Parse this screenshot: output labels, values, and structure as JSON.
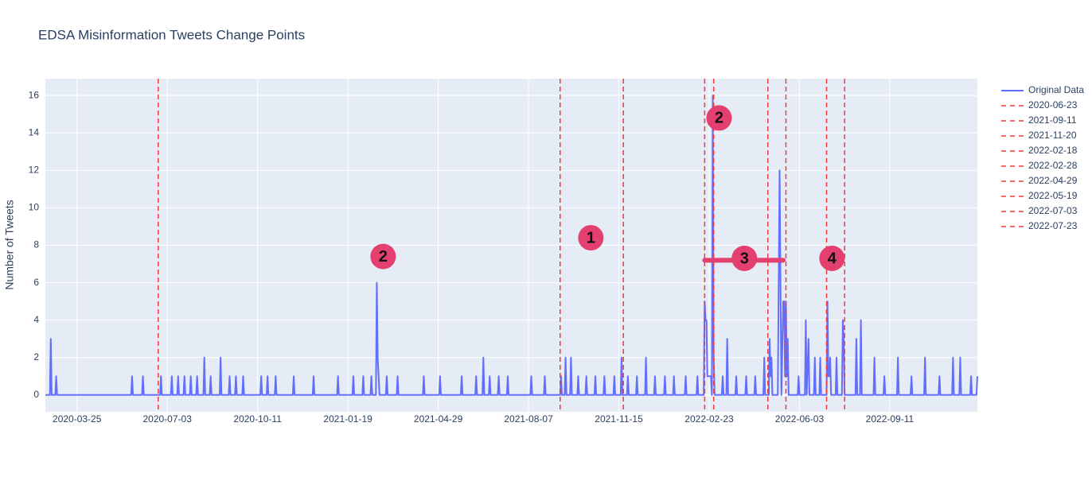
{
  "chart_data": {
    "type": "line",
    "title": "EDSA Misinformation Tweets Change Points",
    "y_label": "Number of Tweets",
    "xlim": [
      "2020-02-19",
      "2022-12-17"
    ],
    "xticks": [
      "2020-03-25",
      "2020-07-03",
      "2020-10-11",
      "2021-01-19",
      "2021-04-29",
      "2021-08-07",
      "2021-11-15",
      "2022-02-23",
      "2022-06-03",
      "2022-09-11"
    ],
    "ylim": [
      -0.9,
      16.9
    ],
    "yticks": [
      0,
      2,
      4,
      6,
      8,
      10,
      12,
      14,
      16
    ],
    "grid": true,
    "x": [
      "2020-02-19",
      "2020-02-24",
      "2020-02-25",
      "2020-02-26",
      "2020-03-01",
      "2020-03-02",
      "2020-03-03",
      "2020-05-24",
      "2020-05-25",
      "2020-05-26",
      "2020-06-05",
      "2020-06-06",
      "2020-06-07",
      "2020-06-25",
      "2020-06-26",
      "2020-06-27",
      "2020-07-07",
      "2020-07-08",
      "2020-07-09",
      "2020-07-14",
      "2020-07-15",
      "2020-07-16",
      "2020-07-21",
      "2020-07-22",
      "2020-07-23",
      "2020-07-28",
      "2020-07-29",
      "2020-07-30",
      "2020-08-04",
      "2020-08-05",
      "2020-08-06",
      "2020-08-12",
      "2020-08-13",
      "2020-08-14",
      "2020-08-19",
      "2020-08-20",
      "2020-08-21",
      "2020-08-30",
      "2020-08-31",
      "2020-09-01",
      "2020-09-09",
      "2020-09-10",
      "2020-09-11",
      "2020-09-16",
      "2020-09-17",
      "2020-09-18",
      "2020-09-24",
      "2020-09-25",
      "2020-09-26",
      "2020-10-14",
      "2020-10-15",
      "2020-10-16",
      "2020-10-21",
      "2020-10-22",
      "2020-10-23",
      "2020-10-30",
      "2020-10-31",
      "2020-11-01",
      "2020-11-19",
      "2020-11-20",
      "2020-11-21",
      "2020-12-11",
      "2020-12-12",
      "2020-12-13",
      "2021-01-07",
      "2021-01-08",
      "2021-01-09",
      "2021-01-24",
      "2021-01-25",
      "2021-01-26",
      "2021-02-04",
      "2021-02-05",
      "2021-02-06",
      "2021-02-13",
      "2021-02-14",
      "2021-02-15",
      "2021-02-19",
      "2021-02-20",
      "2021-02-21",
      "2021-02-22",
      "2021-02-23",
      "2021-03-02",
      "2021-03-03",
      "2021-03-04",
      "2021-03-14",
      "2021-03-15",
      "2021-03-16",
      "2021-04-12",
      "2021-04-13",
      "2021-04-14",
      "2021-04-30",
      "2021-05-01",
      "2021-05-02",
      "2021-05-24",
      "2021-05-25",
      "2021-05-26",
      "2021-06-09",
      "2021-06-10",
      "2021-06-11",
      "2021-06-17",
      "2021-06-18",
      "2021-06-19",
      "2021-06-24",
      "2021-06-25",
      "2021-06-26",
      "2021-07-04",
      "2021-07-05",
      "2021-07-06",
      "2021-07-14",
      "2021-07-15",
      "2021-07-16",
      "2021-08-09",
      "2021-08-10",
      "2021-08-11",
      "2021-08-24",
      "2021-08-25",
      "2021-08-26",
      "2021-09-11",
      "2021-09-12",
      "2021-09-13",
      "2021-09-16",
      "2021-09-17",
      "2021-09-18",
      "2021-09-22",
      "2021-09-23",
      "2021-09-24",
      "2021-09-30",
      "2021-10-01",
      "2021-10-02",
      "2021-10-09",
      "2021-10-10",
      "2021-10-11",
      "2021-10-19",
      "2021-10-20",
      "2021-10-21",
      "2021-10-29",
      "2021-10-30",
      "2021-10-31",
      "2021-11-09",
      "2021-11-10",
      "2021-11-11",
      "2021-11-17",
      "2021-11-18",
      "2021-11-19",
      "2021-11-24",
      "2021-11-25",
      "2021-11-26",
      "2021-12-04",
      "2021-12-05",
      "2021-12-06",
      "2021-12-14",
      "2021-12-15",
      "2021-12-16",
      "2021-12-24",
      "2021-12-25",
      "2021-12-26",
      "2022-01-04",
      "2022-01-05",
      "2022-01-06",
      "2022-01-14",
      "2022-01-15",
      "2022-01-16",
      "2022-01-27",
      "2022-01-28",
      "2022-01-29",
      "2022-02-09",
      "2022-02-10",
      "2022-02-11",
      "2022-02-17",
      "2022-02-18",
      "2022-02-19",
      "2022-02-20",
      "2022-02-21",
      "2022-02-25",
      "2022-02-26",
      "2022-02-27",
      "2022-02-28",
      "2022-03-01",
      "2022-03-09",
      "2022-03-10",
      "2022-03-11",
      "2022-03-14",
      "2022-03-15",
      "2022-03-16",
      "2022-03-24",
      "2022-03-25",
      "2022-03-26",
      "2022-04-04",
      "2022-04-05",
      "2022-04-06",
      "2022-04-14",
      "2022-04-15",
      "2022-04-16",
      "2022-04-24",
      "2022-04-25",
      "2022-04-26",
      "2022-04-30",
      "2022-05-01",
      "2022-05-02",
      "2022-05-03",
      "2022-05-04",
      "2022-05-10",
      "2022-05-12",
      "2022-05-14",
      "2022-05-16",
      "2022-05-17",
      "2022-05-18",
      "2022-05-19",
      "2022-05-20",
      "2022-05-21",
      "2022-05-22",
      "2022-06-01",
      "2022-06-02",
      "2022-06-03",
      "2022-06-09",
      "2022-06-10",
      "2022-06-11",
      "2022-06-13",
      "2022-06-14",
      "2022-06-19",
      "2022-06-20",
      "2022-06-21",
      "2022-06-25",
      "2022-06-26",
      "2022-06-27",
      "2022-07-03",
      "2022-07-04",
      "2022-07-05",
      "2022-07-06",
      "2022-07-07",
      "2022-07-08",
      "2022-07-13",
      "2022-07-14",
      "2022-07-15",
      "2022-07-20",
      "2022-07-21",
      "2022-07-22",
      "2022-07-23",
      "2022-08-04",
      "2022-08-05",
      "2022-08-06",
      "2022-08-09",
      "2022-08-10",
      "2022-08-11",
      "2022-08-24",
      "2022-08-25",
      "2022-08-26",
      "2022-09-04",
      "2022-09-05",
      "2022-09-06",
      "2022-09-19",
      "2022-09-20",
      "2022-09-21",
      "2022-10-04",
      "2022-10-05",
      "2022-10-06",
      "2022-10-19",
      "2022-10-20",
      "2022-10-21",
      "2022-11-04",
      "2022-11-05",
      "2022-11-06",
      "2022-11-19",
      "2022-11-20",
      "2022-11-21",
      "2022-11-27",
      "2022-11-28",
      "2022-11-29",
      "2022-12-09",
      "2022-12-10",
      "2022-12-11",
      "2022-12-16",
      "2022-12-17"
    ],
    "series": [
      {
        "name": "Original Data",
        "color": "#636efa",
        "values": [
          0,
          0,
          3,
          0,
          0,
          1,
          0,
          0,
          1,
          0,
          0,
          1,
          0,
          0,
          1,
          0,
          0,
          1,
          0,
          0,
          1,
          0,
          0,
          1,
          0,
          0,
          1,
          0,
          0,
          1,
          0,
          0,
          2,
          0,
          0,
          1,
          0,
          0,
          2,
          0,
          0,
          1,
          0,
          0,
          1,
          0,
          0,
          1,
          0,
          0,
          1,
          0,
          0,
          1,
          0,
          0,
          1,
          0,
          0,
          1,
          0,
          0,
          1,
          0,
          0,
          1,
          0,
          0,
          1,
          0,
          0,
          1,
          0,
          0,
          1,
          0,
          0,
          6,
          2,
          1,
          0,
          0,
          1,
          0,
          0,
          1,
          0,
          0,
          1,
          0,
          0,
          1,
          0,
          0,
          1,
          0,
          0,
          1,
          0,
          0,
          2,
          0,
          0,
          1,
          0,
          0,
          1,
          0,
          0,
          1,
          0,
          0,
          1,
          0,
          0,
          1,
          0,
          0,
          1,
          0,
          0,
          2,
          0,
          0,
          2,
          0,
          0,
          1,
          0,
          0,
          1,
          0,
          0,
          1,
          0,
          0,
          1,
          0,
          0,
          1,
          0,
          0,
          2,
          0,
          0,
          1,
          0,
          0,
          1,
          0,
          0,
          2,
          0,
          0,
          1,
          0,
          0,
          1,
          0,
          0,
          1,
          0,
          0,
          1,
          0,
          0,
          1,
          0,
          0,
          5,
          4,
          4,
          1,
          1,
          0,
          16,
          2,
          0,
          0,
          1,
          0,
          0,
          3,
          0,
          0,
          1,
          0,
          0,
          1,
          0,
          0,
          1,
          0,
          0,
          2,
          0,
          0,
          3,
          1,
          2,
          0,
          0,
          12,
          0,
          5,
          5,
          1,
          5,
          1,
          3,
          0,
          0,
          1,
          0,
          0,
          4,
          0,
          3,
          0,
          0,
          2,
          0,
          0,
          2,
          0,
          0,
          5,
          1,
          1,
          2,
          0,
          0,
          2,
          0,
          0,
          4,
          3,
          0,
          0,
          3,
          0,
          0,
          4,
          0,
          0,
          2,
          0,
          0,
          1,
          0,
          0,
          2,
          0,
          0,
          1,
          0,
          0,
          2,
          0,
          0,
          1,
          0,
          0,
          2,
          0,
          0,
          2,
          0,
          0,
          1,
          0,
          0,
          1
        ]
      }
    ],
    "change_points": [
      "2020-06-23",
      "2021-09-11",
      "2021-11-20",
      "2022-02-18",
      "2022-02-28",
      "2022-04-29",
      "2022-05-19",
      "2022-07-03",
      "2022-07-23"
    ],
    "change_point_color": "#ef3b3b",
    "annotations": [
      {
        "text": "2",
        "x": "2021-02-27",
        "y": 7.4
      },
      {
        "text": "1",
        "x": "2021-10-15",
        "y": 8.4
      },
      {
        "text": "2",
        "x": "2022-03-06",
        "y": 14.8
      },
      {
        "text": "3",
        "x": "2022-04-03",
        "y": 7.3
      },
      {
        "text": "4",
        "x": "2022-07-09",
        "y": 7.3
      }
    ],
    "annotation_color": "#e4406f",
    "segment": {
      "x0": "2022-02-18",
      "x1": "2022-05-16",
      "y": 7.2
    }
  }
}
